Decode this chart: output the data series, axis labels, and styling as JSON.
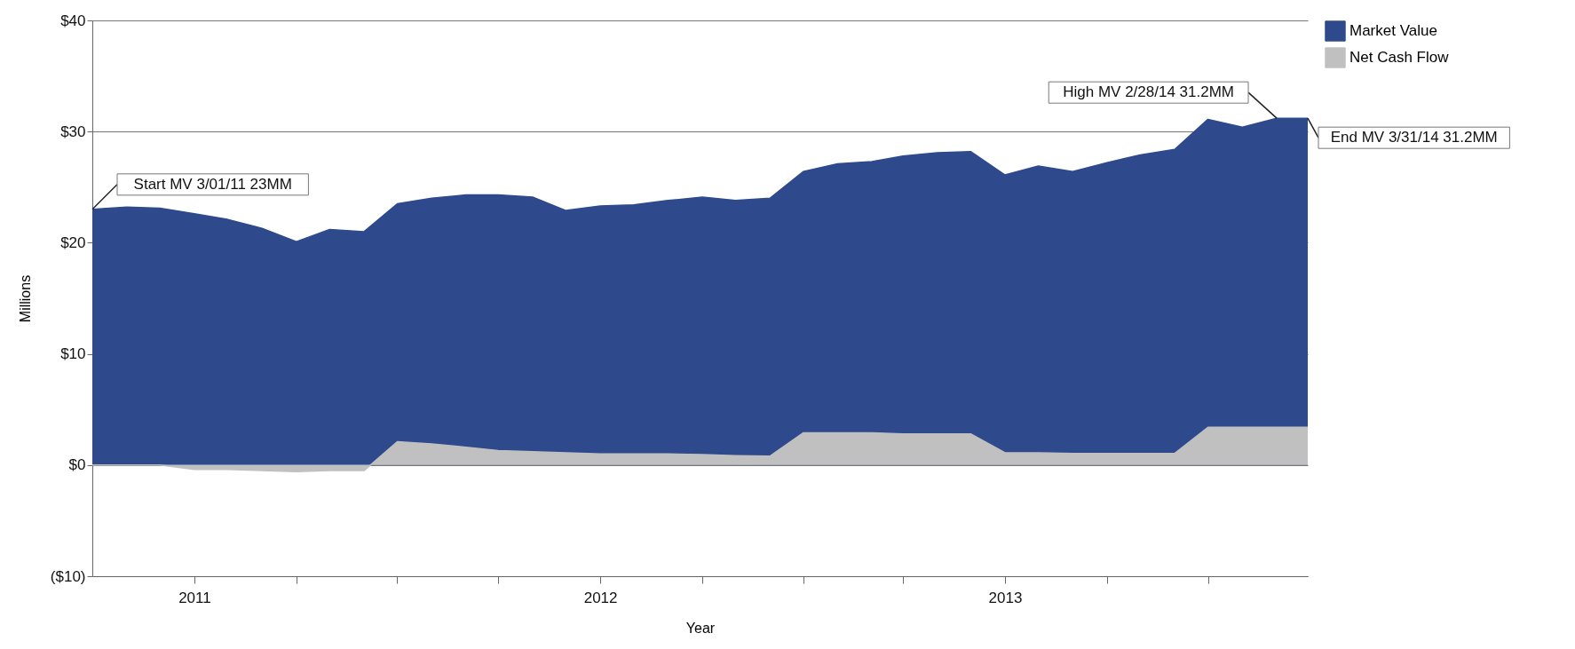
{
  "chart_data": {
    "type": "area",
    "xlabel": "Year",
    "ylabel": "Millions",
    "x": [
      "2011-03",
      "2011-04",
      "2011-05",
      "2011-06",
      "2011-07",
      "2011-08",
      "2011-09",
      "2011-10",
      "2011-11",
      "2011-12",
      "2012-01",
      "2012-02",
      "2012-03",
      "2012-04",
      "2012-05",
      "2012-06",
      "2012-07",
      "2012-08",
      "2012-09",
      "2012-10",
      "2012-11",
      "2012-12",
      "2013-01",
      "2013-02",
      "2013-03",
      "2013-04",
      "2013-05",
      "2013-06",
      "2013-07",
      "2013-08",
      "2013-09",
      "2013-10",
      "2013-11",
      "2013-12",
      "2014-01",
      "2014-02",
      "2014-03"
    ],
    "series": [
      {
        "name": "Market Value",
        "color": "#2e4a8c",
        "values": [
          23.0,
          23.2,
          23.1,
          22.6,
          22.1,
          21.3,
          20.1,
          21.2,
          21.0,
          23.5,
          24.0,
          24.3,
          24.3,
          24.1,
          22.9,
          23.3,
          23.4,
          23.8,
          24.1,
          23.8,
          24.0,
          26.4,
          27.1,
          27.3,
          27.8,
          28.1,
          28.2,
          26.1,
          26.9,
          26.4,
          27.2,
          27.9,
          28.4,
          31.1,
          30.4,
          31.2,
          31.2
        ]
      },
      {
        "name": "Net Cash Flow",
        "color": "#c0c0c0",
        "values": [
          0,
          0,
          0,
          -0.4,
          -0.4,
          -0.5,
          -0.6,
          -0.5,
          -0.5,
          2.1,
          1.9,
          1.6,
          1.3,
          1.2,
          1.1,
          1.0,
          1.0,
          1.0,
          0.95,
          0.85,
          0.8,
          2.9,
          2.9,
          2.9,
          2.8,
          2.8,
          2.8,
          1.1,
          1.1,
          1.05,
          1.05,
          1.05,
          1.05,
          3.4,
          3.4,
          3.4,
          3.4
        ]
      }
    ],
    "xlim": [
      "2011-03",
      "2014-03"
    ],
    "xticks": [
      {
        "value": "2011-06",
        "label": "2011"
      },
      {
        "value": "2011-09",
        "label": null
      },
      {
        "value": "2011-12",
        "label": null
      },
      {
        "value": "2012-03",
        "label": null
      },
      {
        "value": "2012-06",
        "label": "2012"
      },
      {
        "value": "2012-09",
        "label": null
      },
      {
        "value": "2012-12",
        "label": null
      },
      {
        "value": "2013-03",
        "label": null
      },
      {
        "value": "2013-06",
        "label": "2013"
      },
      {
        "value": "2013-09",
        "label": null
      },
      {
        "value": "2013-12",
        "label": null
      }
    ],
    "ylim": [
      -10,
      40
    ],
    "yticks": [
      {
        "value": -10,
        "label": "($10)"
      },
      {
        "value": 0,
        "label": "$0"
      },
      {
        "value": 10,
        "label": "$10"
      },
      {
        "value": 20,
        "label": "$20"
      },
      {
        "value": 30,
        "label": "$30"
      },
      {
        "value": 40,
        "label": "$40"
      }
    ],
    "grid": "y",
    "legend": "right",
    "annotations": [
      {
        "text": "Start MV 3/01/11 23MM",
        "x": "2011-03",
        "y": 23
      },
      {
        "text": "High MV 2/28/14 31.2MM",
        "x": "2014-02",
        "y": 31.2
      },
      {
        "text": "End MV 3/31/14 31.2MM",
        "x": "2014-03",
        "y": 31.2
      }
    ]
  }
}
